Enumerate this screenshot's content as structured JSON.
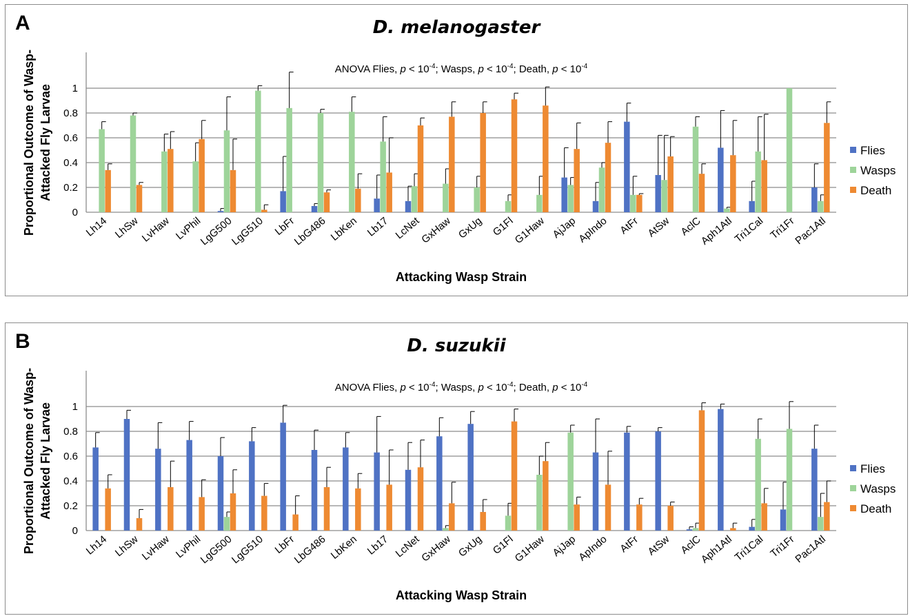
{
  "colors": {
    "flies": "#4f72c4",
    "wasps": "#9ed49a",
    "death": "#ee8a32",
    "grid": "#8c8c8c",
    "axis": "#8c8c8c"
  },
  "chart_data": [
    {
      "panel_label": "A",
      "title": "D. melanogaster",
      "type": "bar",
      "annotation": "ANOVA Flies, p < 10-4; Wasps, p < 10-4; Death, p < 10-4",
      "annotation_parts": {
        "prefix": "ANOVA Flies, ",
        "p": "p",
        "lt": " < 10",
        "exp": "-4",
        "wasps": "; Wasps, ",
        "death": "; Death, "
      },
      "ylabel": "Proportional Outcome of Wasp-Attacked Fly Larvae",
      "ylabel_lines": [
        "Proportional Outcome of Wasp-",
        "Attacked Fly Larvae"
      ],
      "xlabel": "Attacking Wasp Strain",
      "ylim": [
        0,
        1.2
      ],
      "yticks": [
        "0",
        "0.2",
        "0.4",
        "0.6",
        "0.8",
        "1"
      ],
      "legend_position": "right",
      "categories": [
        "Lh14",
        "LhSw",
        "LvHaw",
        "LvPhil",
        "LgG500",
        "LgG510",
        "LbFr",
        "LbG486",
        "LbKen",
        "Lb17",
        "LcNet",
        "GxHaw",
        "GxUg",
        "G1Fl",
        "G1Haw",
        "AjJap",
        "ApIndo",
        "AtFr",
        "AtSw",
        "AclC",
        "Aph1Atl",
        "Tri1Cal",
        "Tri1Fr",
        "Pac1Atl"
      ],
      "series": [
        {
          "name": "Flies",
          "values": [
            0,
            0,
            0,
            0,
            0.01,
            0,
            0.17,
            0.05,
            0,
            0.11,
            0.09,
            0,
            0,
            0,
            0,
            0.28,
            0.09,
            0.73,
            0.3,
            0,
            0.52,
            0.09,
            0,
            0.2
          ],
          "errors": [
            0,
            0,
            0,
            0,
            0.02,
            0,
            0.28,
            0.02,
            0,
            0.19,
            0.12,
            0,
            0,
            0,
            0,
            0.24,
            0.15,
            0.15,
            0.32,
            0,
            0.3,
            0.16,
            0,
            0.19
          ]
        },
        {
          "name": "Wasps",
          "values": [
            0.67,
            0.78,
            0.49,
            0.41,
            0.66,
            0.98,
            0.84,
            0.8,
            0.81,
            0.57,
            0.21,
            0.23,
            0.2,
            0.09,
            0.14,
            0.22,
            0.36,
            0.14,
            0.26,
            0.69,
            0.03,
            0.49,
            1.0,
            0.09
          ],
          "errors": [
            0.06,
            0.02,
            0.14,
            0.15,
            0.27,
            0.04,
            0.29,
            0.03,
            0.12,
            0.2,
            0.1,
            0.12,
            0.09,
            0.05,
            0.15,
            0.06,
            0.04,
            0.15,
            0.36,
            0.08,
            0.01,
            0.28,
            0,
            0.05
          ]
        },
        {
          "name": "Death",
          "values": [
            0.34,
            0.22,
            0.51,
            0.59,
            0.34,
            0.02,
            0,
            0.16,
            0.19,
            0.32,
            0.7,
            0.77,
            0.8,
            0.91,
            0.86,
            0.51,
            0.56,
            0.14,
            0.45,
            0.31,
            0.46,
            0.42,
            0,
            0.72
          ],
          "errors": [
            0.05,
            0.02,
            0.14,
            0.15,
            0.25,
            0.04,
            0,
            0.02,
            0.12,
            0.28,
            0.06,
            0.12,
            0.09,
            0.05,
            0.15,
            0.21,
            0.17,
            0.01,
            0.16,
            0.08,
            0.28,
            0.37,
            0,
            0.17
          ]
        }
      ]
    },
    {
      "panel_label": "B",
      "title": "D. suzukii",
      "type": "bar",
      "annotation": "ANOVA Flies, p < 10-4; Wasps, p < 10-4; Death, p < 10-4",
      "annotation_parts": {
        "prefix": "ANOVA Flies, ",
        "p": "p",
        "lt": " < 10",
        "exp": "-4",
        "wasps": "; Wasps, ",
        "death": "; Death, "
      },
      "ylabel": "Proportional Outcome of Wasp-Attacked Fly Larvae",
      "ylabel_lines": [
        "Proportional Outcome of Wasp-",
        "Attacked Fly Larvae"
      ],
      "xlabel": "Attacking Wasp Strain",
      "ylim": [
        0,
        1.2
      ],
      "yticks": [
        "0",
        "0.2",
        "0.4",
        "0.6",
        "0.8",
        "1"
      ],
      "legend_position": "right",
      "categories": [
        "Lh14",
        "LhSw",
        "LvHaw",
        "LvPhil",
        "LgG500",
        "LgG510",
        "LbFr",
        "LbG486",
        "LbKen",
        "Lb17",
        "LcNet",
        "GxHaw",
        "GxUg",
        "G1Fl",
        "G1Haw",
        "AjJap",
        "ApIndo",
        "AtFr",
        "AtSw",
        "AclC",
        "Aph1Atl",
        "Tri1Cal",
        "Tri1Fr",
        "Pac1Atl"
      ],
      "series": [
        {
          "name": "Flies",
          "values": [
            0.67,
            0.9,
            0.66,
            0.73,
            0.6,
            0.72,
            0.87,
            0.65,
            0.67,
            0.63,
            0.49,
            0.76,
            0.86,
            0,
            0,
            0,
            0.63,
            0.79,
            0.8,
            0.01,
            0.98,
            0.03,
            0.17,
            0.66
          ],
          "errors": [
            0.12,
            0.07,
            0.21,
            0.15,
            0.15,
            0.11,
            0.14,
            0.16,
            0.12,
            0.29,
            0.22,
            0.15,
            0.1,
            0,
            0,
            0,
            0.27,
            0.05,
            0.03,
            0.02,
            0.04,
            0.06,
            0.22,
            0.19
          ]
        },
        {
          "name": "Wasps",
          "values": [
            0,
            0,
            0,
            0,
            0.11,
            0,
            0,
            0,
            0,
            0,
            0,
            0.02,
            0,
            0.12,
            0.45,
            0.79,
            0,
            0,
            0,
            0.02,
            0,
            0.74,
            0.82,
            0.11
          ],
          "errors": [
            0,
            0,
            0,
            0,
            0.04,
            0,
            0,
            0,
            0,
            0,
            0,
            0.02,
            0,
            0.1,
            0.15,
            0.06,
            0,
            0,
            0,
            0.04,
            0,
            0.16,
            0.22,
            0.19
          ]
        },
        {
          "name": "Death",
          "values": [
            0.34,
            0.1,
            0.35,
            0.27,
            0.3,
            0.28,
            0.13,
            0.35,
            0.34,
            0.37,
            0.51,
            0.22,
            0.15,
            0.88,
            0.56,
            0.21,
            0.37,
            0.21,
            0.2,
            0.97,
            0.02,
            0.22,
            0,
            0.23
          ],
          "errors": [
            0.11,
            0.07,
            0.21,
            0.14,
            0.19,
            0.1,
            0.15,
            0.16,
            0.12,
            0.28,
            0.22,
            0.17,
            0.1,
            0.1,
            0.15,
            0.06,
            0.27,
            0.05,
            0.03,
            0.06,
            0.04,
            0.12,
            0,
            0.17
          ]
        }
      ]
    }
  ]
}
